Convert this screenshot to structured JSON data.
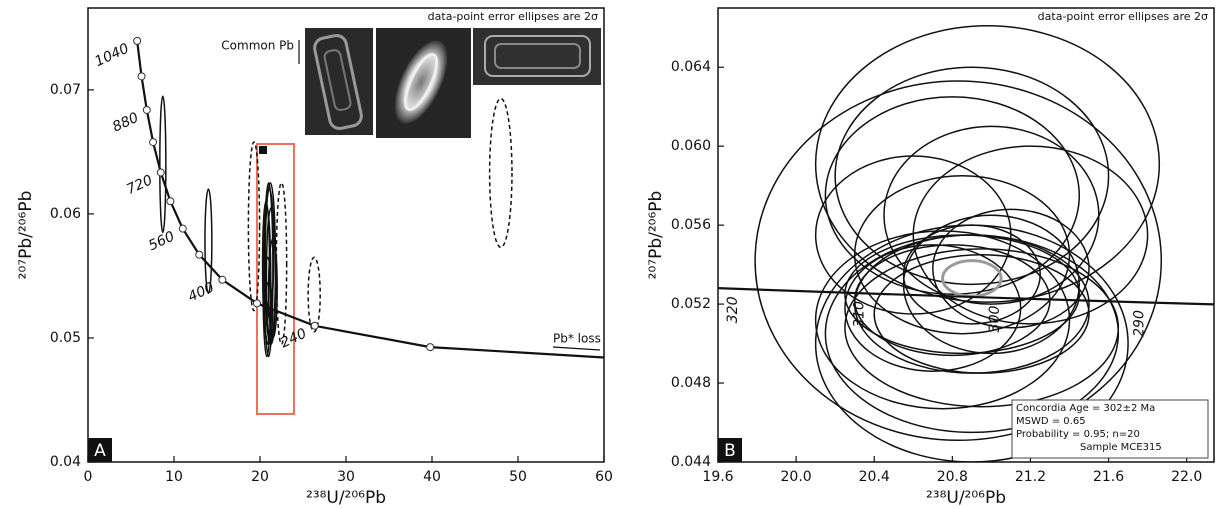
{
  "chart_data": [
    {
      "type": "ellipse",
      "panel_label": "A",
      "annotation": "data-point error ellipses are 2σ",
      "common_pb_label": "Common Pb",
      "pb_loss_label": "Pb* loss",
      "x_label": "²³⁸U/²⁰⁶Pb",
      "y_label": "²⁰⁷Pb/²⁰⁶Pb",
      "xlim": [
        0,
        60
      ],
      "ylim": [
        0.04,
        0.0766
      ],
      "xticks": [
        0,
        10,
        20,
        30,
        40,
        50,
        60
      ],
      "yticks": [
        0.04,
        0.05,
        0.06,
        0.07
      ],
      "concordia": {
        "x": [
          5.712,
          6.227,
          6.837,
          7.568,
          8.462,
          9.58,
          11.019,
          12.937,
          15.62,
          19.65,
          26.365,
          39.79,
          80.07
        ],
        "y": [
          0.07395,
          0.07109,
          0.06838,
          0.06579,
          0.06334,
          0.06102,
          0.05881,
          0.05671,
          0.05469,
          0.05279,
          0.05098,
          0.04926,
          0.0476
        ],
        "labels": [
          "1040",
          null,
          "880",
          null,
          "720",
          null,
          "560",
          null,
          "400",
          null,
          "240",
          null,
          null
        ],
        "markers": true,
        "color": "#111111"
      },
      "ellipses": {
        "color": "#111111",
        "x": [
          8.7,
          14.0,
          19.3,
          22.5,
          26.3,
          48.0,
          21.0,
          21.2,
          20.8,
          21.3,
          20.9,
          21.1,
          21.0,
          21.5,
          20.7
        ],
        "y": [
          0.064,
          0.0578,
          0.059,
          0.056,
          0.0535,
          0.0633,
          0.0555,
          0.056,
          0.0545,
          0.055,
          0.053,
          0.057,
          0.052,
          0.054,
          0.056
        ],
        "x_err": [
          0.35,
          0.4,
          0.65,
          0.6,
          0.7,
          1.3,
          0.5,
          0.6,
          0.45,
          0.55,
          0.4,
          0.5,
          0.45,
          0.5,
          0.4
        ],
        "y_err": [
          0.0055,
          0.0042,
          0.0068,
          0.0065,
          0.003,
          0.006,
          0.007,
          0.0065,
          0.006,
          0.0055,
          0.0035,
          0.005,
          0.0025,
          0.004,
          0.005
        ],
        "dashed": [
          false,
          false,
          true,
          true,
          true,
          true,
          false,
          false,
          false,
          false,
          false,
          false,
          false,
          false,
          false
        ]
      }
    },
    {
      "type": "ellipse",
      "panel_label": "B",
      "annotation": "data-point error ellipses are 2σ",
      "x_label": "²³⁸U/²⁰⁶Pb",
      "y_label": "²⁰⁷Pb/²⁰⁶Pb",
      "xlim": [
        19.6,
        22.14
      ],
      "ylim": [
        0.044,
        0.067
      ],
      "xticks": [
        19.6,
        {
          "value": 20,
          "label": "20.0"
        },
        20.4,
        20.8,
        21.2,
        21.6,
        {
          "value": 22,
          "label": "22.0"
        }
      ],
      "yticks": [
        0.044,
        0.048,
        0.052,
        0.056,
        {
          "value": 0.06,
          "label": "0.060"
        },
        0.064
      ],
      "concordia": {
        "x": [
          19.039,
          19.65,
          20.298,
          20.992,
          21.733,
          22.526
        ],
        "y": [
          0.05303,
          0.05279,
          0.05256,
          0.05233,
          0.0521,
          0.05188
        ],
        "labels": [
          null,
          "320",
          "310",
          "300",
          "290",
          null
        ],
        "markers": false,
        "color": "#111111"
      },
      "ellipses": {
        "color": "#111111",
        "x": [
          20.83,
          20.98,
          20.9,
          20.8,
          21.0,
          20.6,
          21.2,
          20.9,
          20.85,
          20.9,
          20.95,
          20.8,
          20.95,
          20.9,
          20.7,
          21.0,
          20.85,
          21.1,
          20.75,
          20.9
        ],
        "y": [
          0.0542,
          0.0591,
          0.0585,
          0.0575,
          0.0565,
          0.0555,
          0.0555,
          0.0535,
          0.0525,
          0.052,
          0.0515,
          0.0522,
          0.0508,
          0.0505,
          0.0518,
          0.053,
          0.0545,
          0.0538,
          0.0512,
          0.05
        ],
        "x_err": [
          1.04,
          0.88,
          0.7,
          0.65,
          0.55,
          0.5,
          0.6,
          0.35,
          0.6,
          0.6,
          0.55,
          0.5,
          0.7,
          0.75,
          0.45,
          0.45,
          0.55,
          0.4,
          0.65,
          0.8
        ],
        "y_err": [
          0.0091,
          0.007,
          0.0055,
          0.005,
          0.0045,
          0.004,
          0.0045,
          0.0025,
          0.003,
          0.0035,
          0.003,
          0.0028,
          0.004,
          0.005,
          0.0032,
          0.0035,
          0.004,
          0.003,
          0.0045,
          0.006
        ],
        "dashed": [
          false,
          false,
          false,
          false,
          false,
          false,
          false,
          false,
          false,
          false,
          false,
          false,
          false,
          false,
          false,
          false,
          false,
          false,
          false,
          false
        ]
      },
      "mean_ellipse": {
        "x": 20.9,
        "y": 0.0533,
        "x_err": 0.15,
        "y_err": 0.0009,
        "color": "#9a9a9a"
      },
      "legend_text": [
        "Concordia Age = 302±2 Ma",
        "MSWD = 0.65",
        "Probability = 0.95; n=20",
        "Sample MCE315"
      ]
    }
  ]
}
